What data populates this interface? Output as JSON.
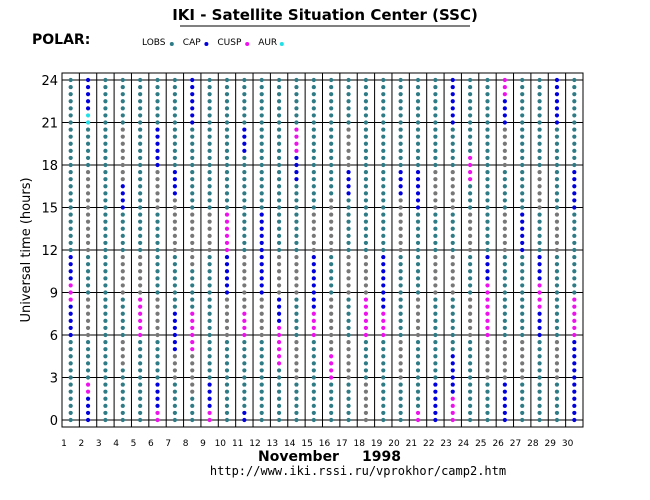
{
  "chart_data": {
    "type": "scatter",
    "title": "IKI - Satellite Situation Center (SSC)",
    "satellite": "POLAR:",
    "ylabel": "Universal time (hours)",
    "xlabel_month": "November",
    "xlabel_year": "1998",
    "source_url": "http://www.iki.rssi.ru/vprokhor/camp2.htm",
    "ylim": [
      0,
      24
    ],
    "yticks": [
      0,
      3,
      6,
      9,
      12,
      15,
      18,
      21,
      24
    ],
    "days": [
      1,
      2,
      3,
      4,
      5,
      6,
      7,
      8,
      9,
      10,
      11,
      12,
      13,
      14,
      15,
      16,
      17,
      18,
      19,
      20,
      21,
      22,
      23,
      24,
      25,
      26,
      27,
      28,
      29,
      30
    ],
    "xtick_labels": [
      "1",
      "2",
      "3",
      "4",
      "5",
      "6",
      "7",
      "8",
      "9",
      "10",
      "11",
      "12",
      "13",
      "14",
      "15",
      "16",
      "17",
      "18",
      "19",
      "20",
      "21",
      "22",
      "23",
      "24",
      "25",
      "26",
      "27",
      "28",
      "29",
      "30"
    ],
    "sample_step_hours": 0.5,
    "legend": [
      {
        "label": "LOBS",
        "color": "#2e7b86"
      },
      {
        "label": "CAP",
        "color": "#0000dd"
      },
      {
        "label": "CUSP",
        "color": "#ee11ee"
      },
      {
        "label": "AUR",
        "color": "#22e0e8"
      }
    ],
    "background_color": "#777777",
    "series_note_colors": {
      "LOBS": "#2e7b86",
      "CAP": "#0000dd",
      "CUSP": "#ee11ee",
      "AUR": "#22e0e8",
      "other": "#777777"
    },
    "series": [
      {
        "day": 1,
        "segments": [
          [
            0,
            6,
            "LOBS"
          ],
          [
            6,
            8.5,
            "CAP"
          ],
          [
            8.5,
            10,
            "CUSP"
          ],
          [
            10,
            12,
            "CAP"
          ],
          [
            12,
            24,
            "LOBS"
          ]
        ]
      },
      {
        "day": 2,
        "segments": [
          [
            0,
            2,
            "CAP"
          ],
          [
            2,
            3,
            "CUSP"
          ],
          [
            3,
            6,
            "LOBS"
          ],
          [
            6,
            9,
            "other"
          ],
          [
            9,
            12,
            "LOBS"
          ],
          [
            12,
            18,
            "other"
          ],
          [
            18,
            21,
            "LOBS"
          ],
          [
            21,
            22,
            "AUR"
          ],
          [
            22,
            24,
            "CAP"
          ]
        ]
      },
      {
        "day": 3,
        "segments": [
          [
            0,
            24,
            "LOBS"
          ]
        ]
      },
      {
        "day": 4,
        "segments": [
          [
            0,
            4,
            "LOBS"
          ],
          [
            4,
            6,
            "other"
          ],
          [
            6,
            9,
            "LOBS"
          ],
          [
            9,
            12,
            "other"
          ],
          [
            12,
            15,
            "LOBS"
          ],
          [
            15,
            17,
            "CAP"
          ],
          [
            17,
            21,
            "other"
          ],
          [
            21,
            24,
            "LOBS"
          ]
        ]
      },
      {
        "day": 5,
        "segments": [
          [
            0,
            6,
            "LOBS"
          ],
          [
            6,
            9,
            "CUSP"
          ],
          [
            9,
            12,
            "other"
          ],
          [
            12,
            24,
            "LOBS"
          ]
        ]
      },
      {
        "day": 6,
        "segments": [
          [
            0,
            1,
            "CUSP"
          ],
          [
            1,
            3,
            "CAP"
          ],
          [
            3,
            6,
            "LOBS"
          ],
          [
            6,
            9,
            "other"
          ],
          [
            9,
            15,
            "LOBS"
          ],
          [
            15,
            18,
            "other"
          ],
          [
            18,
            21,
            "CAP"
          ],
          [
            21,
            24,
            "LOBS"
          ]
        ]
      },
      {
        "day": 7,
        "segments": [
          [
            0,
            3,
            "LOBS"
          ],
          [
            3,
            5,
            "other"
          ],
          [
            5,
            8,
            "CAP"
          ],
          [
            8,
            12,
            "LOBS"
          ],
          [
            12,
            16,
            "other"
          ],
          [
            16,
            18,
            "CAP"
          ],
          [
            18,
            24,
            "LOBS"
          ]
        ]
      },
      {
        "day": 8,
        "segments": [
          [
            0,
            2,
            "LOBS"
          ],
          [
            2,
            5,
            "other"
          ],
          [
            5,
            8,
            "CUSP"
          ],
          [
            8,
            11,
            "LOBS"
          ],
          [
            11,
            15,
            "other"
          ],
          [
            15,
            21,
            "LOBS"
          ],
          [
            21,
            24,
            "CAP"
          ]
        ]
      },
      {
        "day": 9,
        "segments": [
          [
            0,
            1,
            "CUSP"
          ],
          [
            1,
            3,
            "CAP"
          ],
          [
            3,
            12,
            "LOBS"
          ],
          [
            12,
            15,
            "other"
          ],
          [
            15,
            24,
            "LOBS"
          ]
        ]
      },
      {
        "day": 10,
        "segments": [
          [
            0,
            6,
            "LOBS"
          ],
          [
            6,
            9,
            "other"
          ],
          [
            9,
            12,
            "CAP"
          ],
          [
            12,
            15,
            "CUSP"
          ],
          [
            15,
            24,
            "LOBS"
          ]
        ]
      },
      {
        "day": 11,
        "segments": [
          [
            0,
            1,
            "CAP"
          ],
          [
            1,
            6,
            "LOBS"
          ],
          [
            6,
            8,
            "CUSP"
          ],
          [
            8,
            12,
            "other"
          ],
          [
            12,
            19,
            "LOBS"
          ],
          [
            19,
            21,
            "CAP"
          ],
          [
            21,
            24,
            "LOBS"
          ]
        ]
      },
      {
        "day": 12,
        "segments": [
          [
            0,
            6,
            "LOBS"
          ],
          [
            6,
            9,
            "other"
          ],
          [
            9,
            15,
            "CAP"
          ],
          [
            15,
            24,
            "LOBS"
          ]
        ]
      },
      {
        "day": 13,
        "segments": [
          [
            0,
            4,
            "LOBS"
          ],
          [
            4,
            7,
            "CUSP"
          ],
          [
            7,
            9,
            "CAP"
          ],
          [
            9,
            12,
            "other"
          ],
          [
            12,
            24,
            "LOBS"
          ]
        ]
      },
      {
        "day": 14,
        "segments": [
          [
            0,
            3,
            "LOBS"
          ],
          [
            3,
            6,
            "other"
          ],
          [
            6,
            9,
            "LOBS"
          ],
          [
            9,
            12,
            "other"
          ],
          [
            12,
            17,
            "LOBS"
          ],
          [
            17,
            19,
            "CAP"
          ],
          [
            19,
            21,
            "CUSP"
          ],
          [
            21,
            24,
            "LOBS"
          ]
        ]
      },
      {
        "day": 15,
        "segments": [
          [
            0,
            6,
            "LOBS"
          ],
          [
            6,
            8,
            "CUSP"
          ],
          [
            8,
            12,
            "CAP"
          ],
          [
            12,
            15,
            "other"
          ],
          [
            15,
            24,
            "LOBS"
          ]
        ]
      },
      {
        "day": 16,
        "segments": [
          [
            0,
            3,
            "LOBS"
          ],
          [
            3,
            5,
            "CUSP"
          ],
          [
            5,
            9,
            "other"
          ],
          [
            9,
            12,
            "LOBS"
          ],
          [
            12,
            16,
            "other"
          ],
          [
            16,
            24,
            "LOBS"
          ]
        ]
      },
      {
        "day": 17,
        "segments": [
          [
            0,
            3,
            "LOBS"
          ],
          [
            3,
            6,
            "other"
          ],
          [
            6,
            9,
            "LOBS"
          ],
          [
            9,
            12,
            "other"
          ],
          [
            12,
            16,
            "LOBS"
          ],
          [
            16,
            18,
            "CAP"
          ],
          [
            18,
            21,
            "other"
          ],
          [
            21,
            24,
            "LOBS"
          ]
        ]
      },
      {
        "day": 18,
        "segments": [
          [
            0,
            3,
            "other"
          ],
          [
            3,
            6,
            "LOBS"
          ],
          [
            6,
            9,
            "CUSP"
          ],
          [
            9,
            12,
            "other"
          ],
          [
            12,
            24,
            "LOBS"
          ]
        ]
      },
      {
        "day": 19,
        "segments": [
          [
            0,
            6,
            "LOBS"
          ],
          [
            6,
            8,
            "CUSP"
          ],
          [
            8,
            12,
            "CAP"
          ],
          [
            12,
            24,
            "LOBS"
          ]
        ]
      },
      {
        "day": 20,
        "segments": [
          [
            0,
            3,
            "LOBS"
          ],
          [
            3,
            6,
            "other"
          ],
          [
            6,
            12,
            "LOBS"
          ],
          [
            12,
            16,
            "other"
          ],
          [
            16,
            18,
            "CAP"
          ],
          [
            18,
            24,
            "LOBS"
          ]
        ]
      },
      {
        "day": 21,
        "segments": [
          [
            0,
            1,
            "CUSP"
          ],
          [
            1,
            6,
            "LOBS"
          ],
          [
            6,
            9,
            "other"
          ],
          [
            9,
            15,
            "LOBS"
          ],
          [
            15,
            18,
            "CAP"
          ],
          [
            18,
            24,
            "LOBS"
          ]
        ]
      },
      {
        "day": 22,
        "segments": [
          [
            0,
            3,
            "CAP"
          ],
          [
            3,
            9,
            "LOBS"
          ],
          [
            9,
            12,
            "other"
          ],
          [
            12,
            15,
            "LOBS"
          ],
          [
            15,
            18,
            "other"
          ],
          [
            18,
            24,
            "LOBS"
          ]
        ]
      },
      {
        "day": 23,
        "segments": [
          [
            0,
            2,
            "CUSP"
          ],
          [
            2,
            5,
            "CAP"
          ],
          [
            5,
            9,
            "LOBS"
          ],
          [
            9,
            12,
            "other"
          ],
          [
            12,
            15,
            "LOBS"
          ],
          [
            15,
            18,
            "other"
          ],
          [
            18,
            21,
            "LOBS"
          ],
          [
            21,
            24,
            "CAP"
          ]
        ]
      },
      {
        "day": 24,
        "segments": [
          [
            0,
            6,
            "LOBS"
          ],
          [
            6,
            9,
            "other"
          ],
          [
            9,
            12,
            "LOBS"
          ],
          [
            12,
            15,
            "other"
          ],
          [
            15,
            17,
            "LOBS"
          ],
          [
            17,
            19,
            "CUSP"
          ],
          [
            19,
            24,
            "LOBS"
          ]
        ]
      },
      {
        "day": 25,
        "segments": [
          [
            0,
            3,
            "LOBS"
          ],
          [
            3,
            6,
            "other"
          ],
          [
            6,
            10,
            "CUSP"
          ],
          [
            10,
            12,
            "CAP"
          ],
          [
            12,
            24,
            "LOBS"
          ]
        ]
      },
      {
        "day": 26,
        "segments": [
          [
            0,
            3,
            "CAP"
          ],
          [
            3,
            6,
            "other"
          ],
          [
            6,
            12,
            "LOBS"
          ],
          [
            12,
            15,
            "other"
          ],
          [
            15,
            18,
            "LOBS"
          ],
          [
            18,
            21,
            "other"
          ],
          [
            21,
            23,
            "CAP"
          ],
          [
            23,
            24,
            "CUSP"
          ]
        ]
      },
      {
        "day": 27,
        "segments": [
          [
            0,
            3,
            "LOBS"
          ],
          [
            3,
            6,
            "other"
          ],
          [
            6,
            12,
            "LOBS"
          ],
          [
            12,
            15,
            "CAP"
          ],
          [
            15,
            24,
            "LOBS"
          ]
        ]
      },
      {
        "day": 28,
        "segments": [
          [
            0,
            6,
            "LOBS"
          ],
          [
            6,
            8,
            "CAP"
          ],
          [
            8,
            10,
            "CUSP"
          ],
          [
            10,
            12,
            "CAP"
          ],
          [
            12,
            15,
            "LOBS"
          ],
          [
            15,
            18,
            "other"
          ],
          [
            18,
            24,
            "LOBS"
          ]
        ]
      },
      {
        "day": 29,
        "segments": [
          [
            0,
            3,
            "LOBS"
          ],
          [
            3,
            6,
            "other"
          ],
          [
            6,
            12,
            "LOBS"
          ],
          [
            12,
            15,
            "other"
          ],
          [
            15,
            21,
            "LOBS"
          ],
          [
            21,
            24,
            "CAP"
          ]
        ]
      },
      {
        "day": 30,
        "segments": [
          [
            0,
            6,
            "CAP"
          ],
          [
            6,
            9,
            "CUSP"
          ],
          [
            9,
            15,
            "LOBS"
          ],
          [
            15,
            18,
            "CAP"
          ],
          [
            18,
            24,
            "LOBS"
          ]
        ]
      }
    ]
  }
}
